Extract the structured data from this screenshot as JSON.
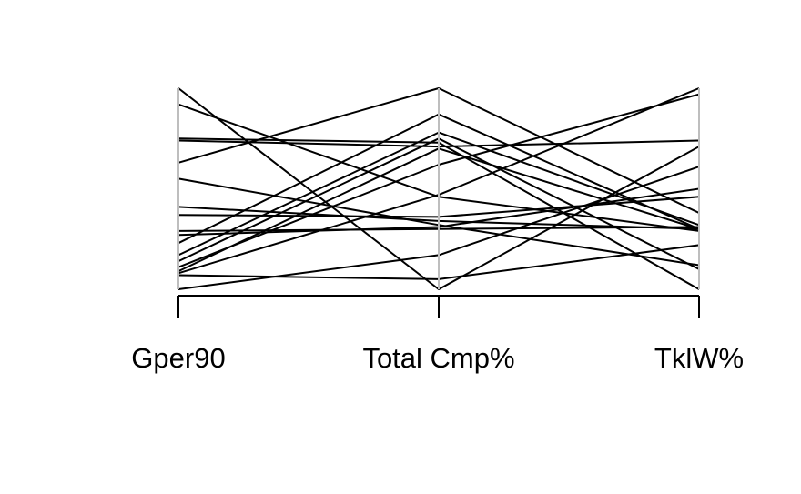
{
  "chart_data": {
    "type": "parallel-coordinates",
    "title": "",
    "axes": [
      "Gper90",
      "Total Cmp%",
      "TklW%"
    ],
    "scale": "each axis scaled independently to [0, 1] (min to max)",
    "ylim": [
      0,
      1
    ],
    "grid": false,
    "legend": "none",
    "series": [
      {
        "values": [
          1.0,
          0.0,
          0.71
        ]
      },
      {
        "values": [
          0.92,
          0.46,
          0.29
        ]
      },
      {
        "values": [
          0.75,
          0.73,
          0.0
        ]
      },
      {
        "values": [
          0.74,
          0.71,
          0.74
        ]
      },
      {
        "values": [
          0.63,
          1.0,
          0.38
        ]
      },
      {
        "values": [
          0.55,
          0.32,
          0.12
        ]
      },
      {
        "values": [
          0.41,
          0.34,
          0.3
        ]
      },
      {
        "values": [
          0.37,
          0.36,
          0.46
        ]
      },
      {
        "values": [
          0.29,
          0.3,
          0.31
        ]
      },
      {
        "values": [
          0.27,
          0.31,
          0.5
        ]
      },
      {
        "values": [
          0.23,
          0.87,
          0.3
        ]
      },
      {
        "values": [
          0.17,
          0.78,
          0.32
        ]
      },
      {
        "values": [
          0.14,
          0.75,
          0.1
        ]
      },
      {
        "values": [
          0.11,
          0.62,
          0.97
        ]
      },
      {
        "values": [
          0.09,
          0.7,
          0.3
        ]
      },
      {
        "values": [
          0.08,
          0.47,
          1.0
        ]
      },
      {
        "values": [
          0.0,
          0.17,
          0.61
        ]
      },
      {
        "values": [
          0.07,
          0.05,
          0.22
        ]
      }
    ],
    "colors": {
      "lines": "#000000",
      "axes": "#bebebe",
      "baseline": "#000000"
    }
  }
}
